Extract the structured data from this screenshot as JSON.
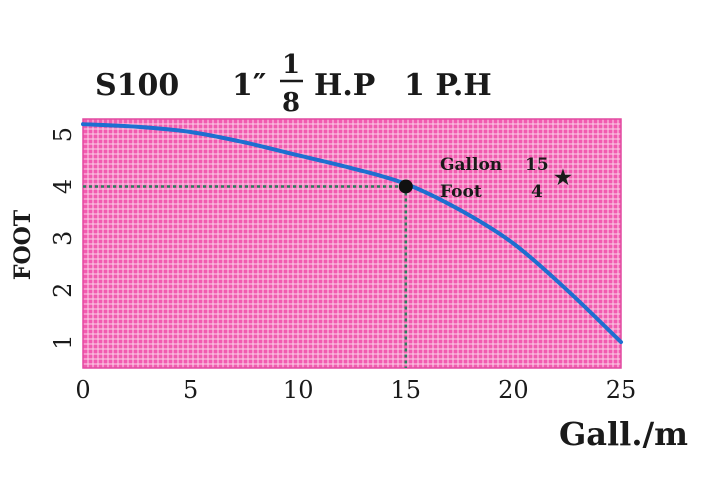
{
  "chart_data": {
    "type": "line",
    "title": {
      "model": "S100",
      "size": "1″",
      "frac_num": "1",
      "frac_den": "8",
      "hp": "H.P",
      "phase": "1 P.H"
    },
    "xlabel": "Gall./m",
    "ylabel": "FOOT",
    "xlim": [
      0,
      25
    ],
    "ylim": [
      0.5,
      5.3
    ],
    "xticks": [
      0,
      5,
      10,
      15,
      20,
      25
    ],
    "yticks": [
      1,
      2,
      3,
      4,
      5
    ],
    "grid": true,
    "colors": {
      "background": "#f25bb0",
      "grid": "#fbd3e9",
      "curve": "#1e6fd0",
      "guide": "#2e7d5e",
      "marker": "#111111"
    },
    "series": [
      {
        "x": [
          0,
          2.5,
          5,
          7.5,
          10,
          12.5,
          15,
          17.5,
          20,
          22.5,
          25
        ],
        "y": [
          5.2,
          5.15,
          5.05,
          4.85,
          4.6,
          4.35,
          4.05,
          3.55,
          2.9,
          2.0,
          1.0
        ]
      }
    ],
    "operating_point": {
      "x": 15,
      "y": 4
    },
    "annotation": {
      "rows": [
        {
          "label": "Gallon",
          "value": "15"
        },
        {
          "label": "Foot",
          "value": "4"
        }
      ],
      "star": "★"
    }
  }
}
